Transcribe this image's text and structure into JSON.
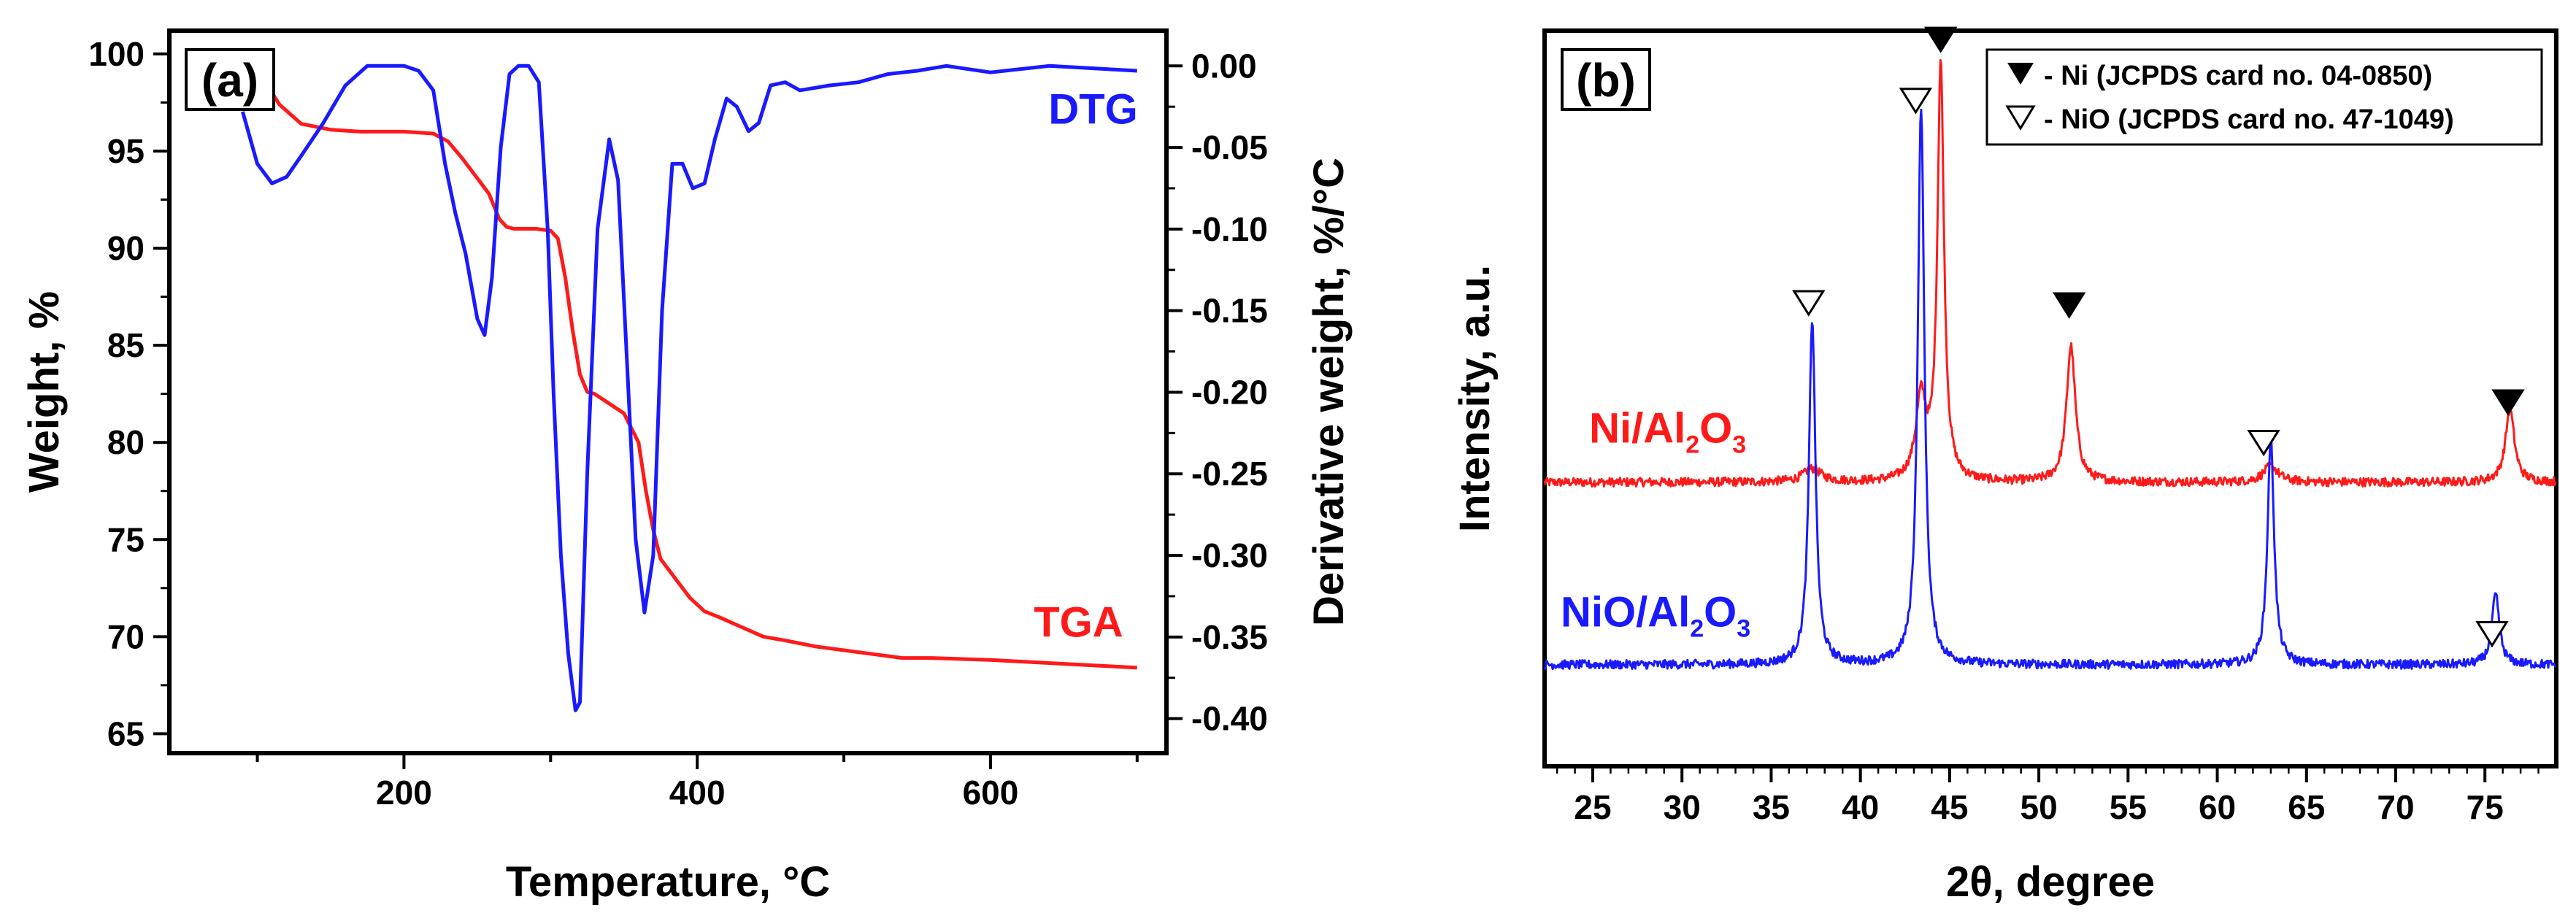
{
  "chart_data": [
    {
      "type": "line",
      "panel_label": "(a)",
      "xlabel": "Temperature, °C",
      "ylabel": "Weight, %",
      "y2label": "Derivative weight, %/°C",
      "xlim": [
        40,
        720
      ],
      "ylim": [
        64,
        101.2
      ],
      "y2lim": [
        -0.4212,
        0.0216
      ],
      "x_ticks": [
        200,
        400,
        600
      ],
      "y_ticks": [
        65,
        70,
        75,
        80,
        85,
        90,
        95,
        100
      ],
      "y2_ticks": [
        "0.00",
        "-0.05",
        "-0.10",
        "-0.15",
        "-0.20",
        "-0.25",
        "-0.30",
        "-0.35",
        "-0.40"
      ],
      "y2_tick_values": [
        0,
        -0.05,
        -0.1,
        -0.15,
        -0.2,
        -0.25,
        -0.3,
        -0.35,
        -0.4
      ],
      "series": [
        {
          "name": "TGA",
          "axis": "left",
          "color": "#ff1a1a",
          "x": [
            90,
            100,
            115,
            130,
            150,
            170,
            200,
            220,
            230,
            240,
            250,
            258,
            265,
            270,
            275,
            290,
            300,
            305,
            310,
            315,
            320,
            325,
            330,
            340,
            350,
            360,
            365,
            370,
            375,
            385,
            395,
            405,
            415,
            430,
            445,
            460,
            480,
            500,
            520,
            540,
            560,
            600,
            650,
            700
          ],
          "y": [
            100,
            99.2,
            97.4,
            96.4,
            96.1,
            96.0,
            96.0,
            95.9,
            95.5,
            94.6,
            93.6,
            92.8,
            91.5,
            91.1,
            91.0,
            91.0,
            90.9,
            90.5,
            88.5,
            85.8,
            83.5,
            82.6,
            82.5,
            82.0,
            81.5,
            80.0,
            77.5,
            75.5,
            74.0,
            73.0,
            72.0,
            71.3,
            71.0,
            70.5,
            70.0,
            69.8,
            69.5,
            69.3,
            69.1,
            68.9,
            68.9,
            68.8,
            68.6,
            68.4
          ]
        },
        {
          "name": "DTG",
          "axis": "right",
          "color": "#1a1aff",
          "x": [
            90,
            100,
            110,
            120,
            130,
            145,
            160,
            175,
            190,
            200,
            210,
            220,
            228,
            235,
            242,
            250,
            255,
            260,
            266,
            272,
            278,
            285,
            292,
            298,
            302,
            307,
            312,
            317,
            320,
            325,
            332,
            340,
            346,
            352,
            358,
            364,
            370,
            376,
            383,
            390,
            397,
            405,
            412,
            420,
            427,
            435,
            442,
            450,
            460,
            470,
            490,
            510,
            530,
            550,
            570,
            600,
            640,
            680,
            700
          ],
          "y": [
            -0.028,
            -0.06,
            -0.072,
            -0.068,
            -0.055,
            -0.035,
            -0.012,
            0.0,
            0.0,
            0.0,
            -0.003,
            -0.015,
            -0.06,
            -0.09,
            -0.115,
            -0.155,
            -0.165,
            -0.13,
            -0.05,
            -0.005,
            0.0,
            0.0,
            -0.01,
            -0.1,
            -0.2,
            -0.3,
            -0.36,
            -0.395,
            -0.39,
            -0.25,
            -0.1,
            -0.045,
            -0.07,
            -0.18,
            -0.29,
            -0.335,
            -0.3,
            -0.15,
            -0.06,
            -0.06,
            -0.075,
            -0.072,
            -0.045,
            -0.02,
            -0.025,
            -0.04,
            -0.035,
            -0.012,
            -0.01,
            -0.015,
            -0.012,
            -0.01,
            -0.005,
            -0.003,
            0.0,
            -0.004,
            0.0,
            -0.002,
            -0.003
          ]
        }
      ],
      "annotations": [
        {
          "text": "DTG",
          "color": "#1a1aff",
          "x": 670,
          "y": 96.4
        },
        {
          "text": "TGA",
          "color": "#ff1a1a",
          "x": 660,
          "y": 70.0
        }
      ]
    },
    {
      "type": "line",
      "panel_label": "(b)",
      "xlabel": "2θ, degree",
      "ylabel": "Intensity, a.u.",
      "xlim": [
        22.3,
        79
      ],
      "ylim": [
        0,
        1
      ],
      "x_ticks": [
        25,
        30,
        35,
        40,
        45,
        50,
        55,
        60,
        65,
        70,
        75
      ],
      "series": [
        {
          "name": "Ni/Al2O3",
          "color": "#ff1a1a",
          "baseline": 0.386,
          "peaks": [
            [
              37.3,
              0.018,
              0.6
            ],
            [
              43.4,
              0.11,
              0.35
            ],
            [
              44.5,
              0.566,
              0.22
            ],
            [
              51.8,
              0.185,
              0.3
            ],
            [
              63.0,
              0.022,
              0.5
            ],
            [
              76.4,
              0.1,
              0.3
            ]
          ],
          "label_parts": [
            "Ni/Al",
            "2",
            "O",
            "3"
          ]
        },
        {
          "name": "NiO/Al2O3",
          "color": "#1a1aff",
          "baseline": 0.138,
          "peaks": [
            [
              37.3,
              0.47,
              0.22
            ],
            [
              43.4,
              0.76,
              0.22
            ],
            [
              63.0,
              0.31,
              0.22
            ],
            [
              75.6,
              0.095,
              0.25
            ]
          ],
          "label_parts": [
            "NiO/Al",
            "2",
            "O",
            "3"
          ]
        }
      ],
      "markers": [
        {
          "kind": "ni",
          "x": 44.5,
          "y": 0.988
        },
        {
          "kind": "nio",
          "x": 43.1,
          "y": 0.905
        },
        {
          "kind": "nio",
          "x": 37.1,
          "y": 0.63
        },
        {
          "kind": "ni",
          "x": 51.7,
          "y": 0.627
        },
        {
          "kind": "nio",
          "x": 62.6,
          "y": 0.44
        },
        {
          "kind": "ni",
          "x": 76.3,
          "y": 0.495
        },
        {
          "kind": "nio",
          "x": 75.4,
          "y": 0.18
        }
      ],
      "legend": {
        "placement": "top-right",
        "ni_text": "- Ni (JCPDS card no. 04-0850)",
        "nio_text": "- NiO (JCPDS card no. 47-1049)"
      }
    }
  ]
}
